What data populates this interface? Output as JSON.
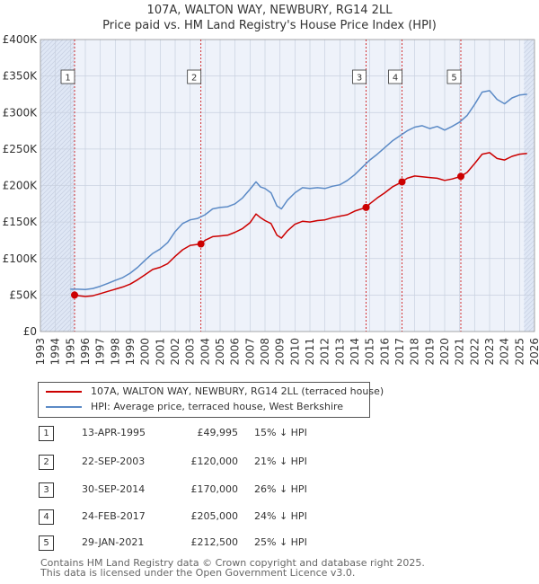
{
  "header": {
    "title": "107A, WALTON WAY, NEWBURY, RG14 2LL",
    "subtitle": "Price paid vs. HM Land Registry's House Price Index (HPI)"
  },
  "colors": {
    "property_line": "#cc0000",
    "hpi_line": "#5b8ac6",
    "shade": "#dfe7f5",
    "grid": "#c8d0df"
  },
  "chart_data": {
    "type": "line",
    "title": "107A, WALTON WAY, NEWBURY, RG14 2LL",
    "subtitle": "Price paid vs. HM Land Registry's House Price Index (HPI)",
    "xlim": [
      1993,
      2026
    ],
    "ylim": [
      0,
      400000
    ],
    "xticks": [
      1993,
      1994,
      1995,
      1996,
      1997,
      1998,
      1999,
      2000,
      2001,
      2002,
      2003,
      2004,
      2005,
      2006,
      2007,
      2008,
      2009,
      2010,
      2011,
      2012,
      2013,
      2014,
      2015,
      2016,
      2017,
      2018,
      2019,
      2020,
      2021,
      2022,
      2023,
      2024,
      2025,
      2026
    ],
    "yticks": [
      {
        "value": 0,
        "label": "£0"
      },
      {
        "value": 50000,
        "label": "£50K"
      },
      {
        "value": 100000,
        "label": "£100K"
      },
      {
        "value": 150000,
        "label": "£150K"
      },
      {
        "value": 200000,
        "label": "£200K"
      },
      {
        "value": 250000,
        "label": "£250K"
      },
      {
        "value": 300000,
        "label": "£300K"
      },
      {
        "value": 350000,
        "label": "£350K"
      },
      {
        "value": 400000,
        "label": "£400K"
      }
    ],
    "shaded_ranges": [
      [
        1993,
        1995.28
      ],
      [
        2025.3,
        2026
      ]
    ],
    "series": [
      {
        "name": "107A, WALTON WAY, NEWBURY, RG14 2LL (terraced house)",
        "color": "#cc0000",
        "points": [
          [
            1995.28,
            49995
          ],
          [
            1995.6,
            49000
          ],
          [
            1996,
            48000
          ],
          [
            1996.5,
            49000
          ],
          [
            1997,
            52000
          ],
          [
            1997.5,
            55000
          ],
          [
            1998,
            58000
          ],
          [
            1998.5,
            61000
          ],
          [
            1999,
            65000
          ],
          [
            1999.5,
            71000
          ],
          [
            2000,
            78000
          ],
          [
            2000.5,
            85000
          ],
          [
            2001,
            88000
          ],
          [
            2001.5,
            93000
          ],
          [
            2002,
            103000
          ],
          [
            2002.5,
            112000
          ],
          [
            2003,
            118000
          ],
          [
            2003.72,
            120000
          ],
          [
            2004,
            125000
          ],
          [
            2004.5,
            130000
          ],
          [
            2005,
            131000
          ],
          [
            2005.5,
            132000
          ],
          [
            2006,
            136000
          ],
          [
            2006.5,
            141000
          ],
          [
            2007,
            149000
          ],
          [
            2007.4,
            161000
          ],
          [
            2007.7,
            156000
          ],
          [
            2008,
            152000
          ],
          [
            2008.4,
            148000
          ],
          [
            2008.8,
            132000
          ],
          [
            2009.1,
            128000
          ],
          [
            2009.5,
            138000
          ],
          [
            2010,
            147000
          ],
          [
            2010.5,
            151000
          ],
          [
            2011,
            150000
          ],
          [
            2011.5,
            152000
          ],
          [
            2012,
            153000
          ],
          [
            2012.5,
            156000
          ],
          [
            2013,
            158000
          ],
          [
            2013.5,
            160000
          ],
          [
            2014,
            165000
          ],
          [
            2014.75,
            170000
          ],
          [
            2015,
            175000
          ],
          [
            2015.5,
            183000
          ],
          [
            2016,
            190000
          ],
          [
            2016.5,
            198000
          ],
          [
            2017.15,
            205000
          ],
          [
            2017.5,
            210000
          ],
          [
            2018,
            213000
          ],
          [
            2018.5,
            212000
          ],
          [
            2019,
            211000
          ],
          [
            2019.5,
            210000
          ],
          [
            2020,
            207000
          ],
          [
            2020.5,
            209000
          ],
          [
            2021.08,
            212500
          ],
          [
            2021.5,
            218000
          ],
          [
            2022,
            230000
          ],
          [
            2022.5,
            243000
          ],
          [
            2023,
            245000
          ],
          [
            2023.5,
            237000
          ],
          [
            2024,
            235000
          ],
          [
            2024.5,
            240000
          ],
          [
            2025,
            243000
          ],
          [
            2025.5,
            244000
          ]
        ]
      },
      {
        "name": "HPI: Average price, terraced house, West Berkshire",
        "color": "#5b8ac6",
        "points": [
          [
            1995,
            58000
          ],
          [
            1995.5,
            58000
          ],
          [
            1996,
            57500
          ],
          [
            1996.5,
            59000
          ],
          [
            1997,
            62000
          ],
          [
            1997.5,
            66000
          ],
          [
            1998,
            70000
          ],
          [
            1998.5,
            74000
          ],
          [
            1999,
            80000
          ],
          [
            1999.5,
            88000
          ],
          [
            2000,
            98000
          ],
          [
            2000.5,
            107000
          ],
          [
            2001,
            113000
          ],
          [
            2001.5,
            122000
          ],
          [
            2002,
            137000
          ],
          [
            2002.5,
            148000
          ],
          [
            2003,
            153000
          ],
          [
            2003.5,
            155000
          ],
          [
            2004,
            160000
          ],
          [
            2004.5,
            168000
          ],
          [
            2005,
            170000
          ],
          [
            2005.5,
            171000
          ],
          [
            2006,
            175000
          ],
          [
            2006.5,
            183000
          ],
          [
            2007,
            195000
          ],
          [
            2007.4,
            205000
          ],
          [
            2007.7,
            198000
          ],
          [
            2008,
            196000
          ],
          [
            2008.4,
            190000
          ],
          [
            2008.8,
            172000
          ],
          [
            2009.1,
            168000
          ],
          [
            2009.5,
            180000
          ],
          [
            2010,
            190000
          ],
          [
            2010.5,
            197000
          ],
          [
            2011,
            196000
          ],
          [
            2011.5,
            197000
          ],
          [
            2012,
            196000
          ],
          [
            2012.5,
            199000
          ],
          [
            2013,
            201000
          ],
          [
            2013.5,
            207000
          ],
          [
            2014,
            215000
          ],
          [
            2014.5,
            225000
          ],
          [
            2015,
            235000
          ],
          [
            2015.5,
            243000
          ],
          [
            2016,
            252000
          ],
          [
            2016.5,
            261000
          ],
          [
            2017,
            268000
          ],
          [
            2017.5,
            275000
          ],
          [
            2018,
            280000
          ],
          [
            2018.5,
            282000
          ],
          [
            2019,
            278000
          ],
          [
            2019.5,
            281000
          ],
          [
            2020,
            276000
          ],
          [
            2020.5,
            281000
          ],
          [
            2021,
            287000
          ],
          [
            2021.5,
            296000
          ],
          [
            2022,
            311000
          ],
          [
            2022.5,
            328000
          ],
          [
            2023,
            330000
          ],
          [
            2023.5,
            318000
          ],
          [
            2024,
            312000
          ],
          [
            2024.5,
            320000
          ],
          [
            2025,
            324000
          ],
          [
            2025.5,
            325000
          ]
        ]
      }
    ],
    "sales": [
      {
        "label": "1",
        "x": 1995.28,
        "price": 49995
      },
      {
        "label": "2",
        "x": 2003.72,
        "price": 120000
      },
      {
        "label": "3",
        "x": 2014.75,
        "price": 170000
      },
      {
        "label": "4",
        "x": 2017.15,
        "price": 205000
      },
      {
        "label": "5",
        "x": 2021.08,
        "price": 212500
      }
    ]
  },
  "legend": {
    "items": [
      {
        "label": "107A, WALTON WAY, NEWBURY, RG14 2LL (terraced house)",
        "color": "#cc0000"
      },
      {
        "label": "HPI: Average price, terraced house, West Berkshire",
        "color": "#5b8ac6"
      }
    ]
  },
  "sales_table": [
    {
      "num": "1",
      "date": "13-APR-1995",
      "price": "£49,995",
      "delta": "15% ↓ HPI"
    },
    {
      "num": "2",
      "date": "22-SEP-2003",
      "price": "£120,000",
      "delta": "21% ↓ HPI"
    },
    {
      "num": "3",
      "date": "30-SEP-2014",
      "price": "£170,000",
      "delta": "26% ↓ HPI"
    },
    {
      "num": "4",
      "date": "24-FEB-2017",
      "price": "£205,000",
      "delta": "24% ↓ HPI"
    },
    {
      "num": "5",
      "date": "29-JAN-2021",
      "price": "£212,500",
      "delta": "25% ↓ HPI"
    }
  ],
  "footer": {
    "line1": "Contains HM Land Registry data © Crown copyright and database right 2025.",
    "line2": "This data is licensed under the Open Government Licence v3.0."
  }
}
